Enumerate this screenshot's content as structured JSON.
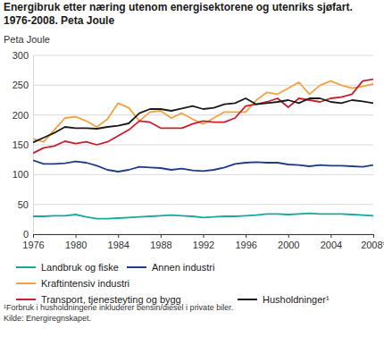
{
  "chart_data": {
    "type": "line",
    "title": "Energibruk etter næring utenom energisektorene og utenriks sjøfart. 1976-2008. Peta Joule",
    "y_label": "Peta Joule",
    "x": [
      1976,
      1977,
      1978,
      1979,
      1980,
      1981,
      1982,
      1983,
      1984,
      1985,
      1986,
      1987,
      1988,
      1989,
      1990,
      1991,
      1992,
      1993,
      1994,
      1995,
      1996,
      1997,
      1998,
      1999,
      2000,
      2001,
      2002,
      2003,
      2004,
      2005,
      2006,
      2007,
      2008
    ],
    "xlim": [
      1976,
      2008
    ],
    "xticks": [
      1976,
      1980,
      1984,
      1988,
      1992,
      1996,
      2000,
      2004,
      {
        "value": 2008,
        "label": "2008*"
      }
    ],
    "ylim": [
      0,
      300
    ],
    "yticks": [
      0,
      50,
      100,
      150,
      200,
      250,
      300
    ],
    "grid": true,
    "legend": "bottom",
    "series": [
      {
        "name": "Landbruk og fiske",
        "color": "#1aa79c",
        "values": [
          30,
          30,
          31,
          31,
          33,
          29,
          26,
          26,
          27,
          28,
          29,
          30,
          31,
          32,
          31,
          30,
          28,
          29,
          30,
          30,
          31,
          32,
          34,
          34,
          33,
          34,
          35,
          34,
          34,
          34,
          33,
          32,
          31
        ]
      },
      {
        "name": "Annen industri",
        "color": "#1f3c88",
        "values": [
          124,
          118,
          118,
          119,
          122,
          120,
          115,
          108,
          105,
          108,
          113,
          112,
          111,
          108,
          110,
          107,
          106,
          108,
          112,
          118,
          120,
          121,
          120,
          120,
          117,
          116,
          114,
          116,
          115,
          115,
          114,
          113,
          116
        ]
      },
      {
        "name": "Kraftintensiv industri",
        "color": "#f5a142",
        "values": [
          160,
          155,
          175,
          195,
          197,
          190,
          180,
          193,
          220,
          212,
          190,
          205,
          207,
          195,
          203,
          193,
          185,
          195,
          205,
          205,
          205,
          225,
          238,
          235,
          245,
          255,
          235,
          250,
          257,
          250,
          245,
          248,
          252
        ]
      },
      {
        "name": "Transport, tjenesteyting og bygg",
        "color": "#c8202f",
        "values": [
          136,
          145,
          148,
          156,
          152,
          155,
          150,
          155,
          165,
          175,
          190,
          188,
          178,
          178,
          178,
          185,
          190,
          188,
          188,
          195,
          215,
          218,
          222,
          228,
          213,
          228,
          225,
          222,
          228,
          230,
          235,
          257,
          260
        ]
      },
      {
        "name": "Husholdninger¹",
        "color": "#1a1a1a",
        "values": [
          154,
          162,
          170,
          180,
          178,
          178,
          177,
          180,
          182,
          186,
          203,
          210,
          210,
          207,
          211,
          215,
          210,
          212,
          218,
          220,
          228,
          218,
          220,
          222,
          225,
          220,
          228,
          228,
          222,
          220,
          225,
          223,
          220
        ]
      }
    ],
    "footnote": "¹Forbruk i husholdningene inkluderer bensin/diesel i private biler.",
    "source": "Kilde: Energiregnskapet."
  }
}
